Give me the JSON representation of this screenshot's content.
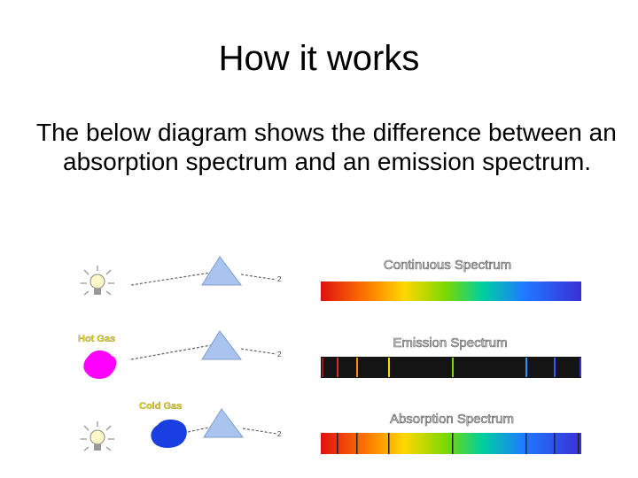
{
  "slide": {
    "title": "How it works",
    "body": "The below diagram shows the difference between an absorption spectrum and an emission spectrum."
  },
  "diagram": {
    "rows": [
      {
        "source_label": "",
        "source_icon": "light-bulb-icon",
        "spectrum_title": "Continuous Spectrum",
        "spectrum_type": "continuous",
        "arrow_label": "2"
      },
      {
        "source_label": "Hot Gas",
        "source_icon": "hot-gas-cloud-icon",
        "spectrum_title": "Emission Spectrum",
        "spectrum_type": "emission",
        "arrow_label": "2"
      },
      {
        "source_label": "Cold Gas",
        "source_icon": "cold-gas-cloud-icon",
        "spectrum_title": "Absorption Spectrum",
        "spectrum_type": "absorption",
        "arrow_label": "2"
      }
    ],
    "colors": {
      "hot_gas": "#ff00ff",
      "cold_gas": "#1a3fe0",
      "prism": "#a9c4ef",
      "label_yellow": "#e8d400"
    }
  }
}
